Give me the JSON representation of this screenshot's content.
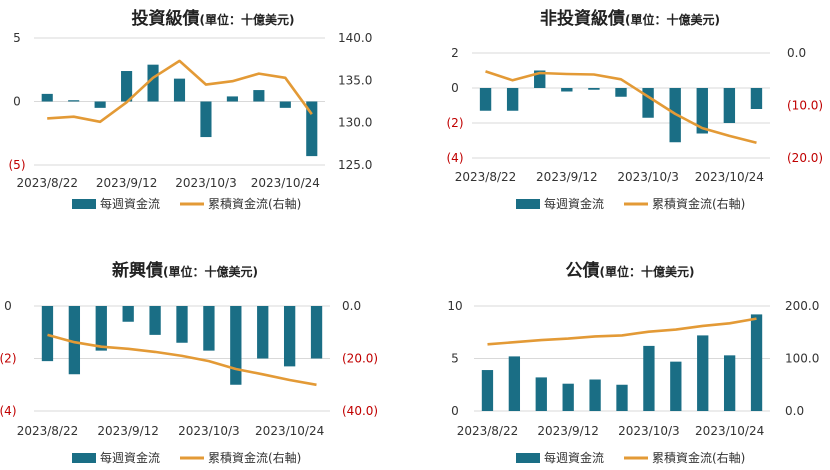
{
  "colors": {
    "bar": "#1a6e85",
    "line": "#e39a36",
    "negative_tick": "#c00000",
    "grid": "#d9d9d9"
  },
  "chart_data": [
    {
      "type": "bar+line",
      "title": "投資級債",
      "unit": "(單位：十億美元)",
      "x_tick_labels": [
        "2023/8/22",
        "2023/9/12",
        "2023/10/3",
        "2023/10/24"
      ],
      "left_axis": {
        "ticks": [
          "5",
          "0",
          "(5)"
        ],
        "tick_values": [
          5,
          0,
          -5
        ],
        "ylim": [
          -5,
          5
        ]
      },
      "right_axis": {
        "ticks": [
          "140.0",
          "135.0",
          "130.0",
          "125.0"
        ],
        "tick_values": [
          140,
          135,
          130,
          125
        ],
        "ylim": [
          125,
          140
        ]
      },
      "grid": true,
      "legend_position": "bottom",
      "series": [
        {
          "name": "每週資金流",
          "type": "bar",
          "axis": "left",
          "values": [
            0.6,
            0.1,
            -0.5,
            2.4,
            2.9,
            1.8,
            -2.8,
            0.4,
            0.9,
            -0.5,
            -4.3
          ]
        },
        {
          "name": "累積資金流(右軸)",
          "type": "line",
          "axis": "right",
          "values": [
            130.5,
            130.7,
            130.1,
            132.4,
            135.3,
            137.3,
            134.5,
            134.9,
            135.8,
            135.3,
            131.0
          ]
        }
      ]
    },
    {
      "type": "bar+line",
      "title": "非投資級債",
      "unit": "(單位：十億美元)",
      "x_tick_labels": [
        "2023/8/22",
        "2023/9/12",
        "2023/10/3",
        "2023/10/24"
      ],
      "left_axis": {
        "ticks": [
          "2",
          "0",
          "(2)",
          "(4)"
        ],
        "tick_values": [
          2,
          0,
          -2,
          -4
        ],
        "ylim": [
          -4,
          2
        ]
      },
      "right_axis": {
        "ticks": [
          "0.0",
          "(10.0)",
          "(20.0)"
        ],
        "tick_values": [
          0,
          -10,
          -20
        ],
        "ylim": [
          -20,
          0
        ]
      },
      "grid": true,
      "legend_position": "bottom",
      "series": [
        {
          "name": "每週資金流",
          "type": "bar",
          "axis": "left",
          "values": [
            -1.3,
            -1.3,
            1.0,
            -0.2,
            -0.1,
            -0.5,
            -1.7,
            -3.1,
            -2.6,
            -2.0,
            -1.2
          ]
        },
        {
          "name": "累積資金流(右軸)",
          "type": "line",
          "axis": "right",
          "values": [
            -3.5,
            -5.2,
            -3.8,
            -4.0,
            -4.1,
            -5.0,
            -8.3,
            -11.6,
            -14.3,
            -15.8,
            -17.1
          ]
        }
      ]
    },
    {
      "type": "bar+line",
      "title": "新興債",
      "unit": "(單位：十億美元)",
      "x_tick_labels": [
        "2023/8/22",
        "2023/9/12",
        "2023/10/3",
        "2023/10/24"
      ],
      "left_axis": {
        "ticks": [
          "0",
          "(2)",
          "(4)"
        ],
        "tick_values": [
          0,
          -2,
          -4
        ],
        "ylim": [
          -4,
          0
        ]
      },
      "right_axis": {
        "ticks": [
          "0.0",
          "(20.0)",
          "(40.0)"
        ],
        "tick_values": [
          0,
          -20,
          -40
        ],
        "ylim": [
          -40,
          0
        ]
      },
      "grid": true,
      "legend_position": "bottom",
      "series": [
        {
          "name": "每週資金流",
          "type": "bar",
          "axis": "left",
          "values": [
            -2.1,
            -2.6,
            -1.7,
            -0.6,
            -1.1,
            -1.4,
            -1.7,
            -3.0,
            -2.0,
            -2.3,
            -2.0
          ]
        },
        {
          "name": "累積資金流(右軸)",
          "type": "line",
          "axis": "right",
          "values": [
            -11.0,
            -13.8,
            -15.5,
            -16.3,
            -17.5,
            -19.0,
            -21.0,
            -24.0,
            -26.0,
            -28.2,
            -30.0
          ]
        }
      ]
    },
    {
      "type": "bar+line",
      "title": "公債",
      "unit": "(單位：十億美元)",
      "x_tick_labels": [
        "2023/8/22",
        "2023/9/12",
        "2023/10/3",
        "2023/10/24"
      ],
      "left_axis": {
        "ticks": [
          "10",
          "5",
          "0"
        ],
        "tick_values": [
          10,
          5,
          0
        ],
        "ylim": [
          0,
          10
        ]
      },
      "right_axis": {
        "ticks": [
          "200.0",
          "100.0",
          "0.0"
        ],
        "tick_values": [
          200,
          100,
          0
        ],
        "ylim": [
          0,
          200
        ]
      },
      "grid": true,
      "legend_position": "bottom",
      "series": [
        {
          "name": "每週資金流",
          "type": "bar",
          "axis": "left",
          "values": [
            3.9,
            5.2,
            3.2,
            2.6,
            3.0,
            2.5,
            6.2,
            4.7,
            7.2,
            5.3,
            9.2
          ]
        },
        {
          "name": "累積資金流(右軸)",
          "type": "line",
          "axis": "right",
          "values": [
            127.0,
            131.0,
            135.0,
            138.0,
            142.0,
            144.0,
            151.0,
            155.0,
            162.0,
            167.0,
            176.0
          ]
        }
      ]
    }
  ]
}
